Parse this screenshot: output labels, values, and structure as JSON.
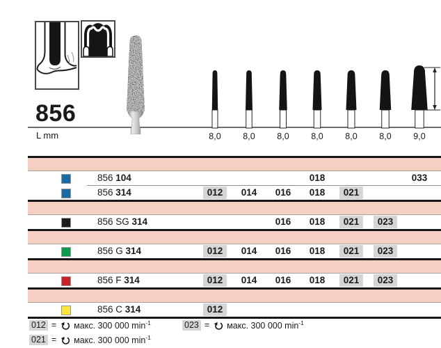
{
  "header": {
    "product_number": "856",
    "length_label": "L mm"
  },
  "shank_lengths": {
    "values": [
      "8,0",
      "8,0",
      "8,0",
      "8,0",
      "8,0",
      "8,0",
      "9,0"
    ]
  },
  "table": {
    "column_sizes": [
      "012",
      "014",
      "016",
      "018",
      "021",
      "023",
      "033"
    ],
    "groups": [
      {
        "rows": [
          {
            "label_plain": "856",
            "label_bold": "104",
            "square_color": "#196ba3",
            "cells": [
              {
                "size": "018",
                "col": 3,
                "highlight": false
              },
              {
                "size": "033",
                "col": 6,
                "highlight": false
              }
            ]
          },
          {
            "label_plain": "856",
            "label_bold": "314",
            "square_color": "#196ba3",
            "cells": [
              {
                "size": "012",
                "col": 0,
                "highlight": true
              },
              {
                "size": "014",
                "col": 1,
                "highlight": false
              },
              {
                "size": "016",
                "col": 2,
                "highlight": false
              },
              {
                "size": "018",
                "col": 3,
                "highlight": false
              },
              {
                "size": "021",
                "col": 4,
                "highlight": true
              }
            ]
          }
        ]
      },
      {
        "rows": [
          {
            "label_plain": "856 SG",
            "label_bold": "314",
            "square_color": "#1c1c1c",
            "cells": [
              {
                "size": "016",
                "col": 2,
                "highlight": false
              },
              {
                "size": "018",
                "col": 3,
                "highlight": false
              },
              {
                "size": "021",
                "col": 4,
                "highlight": true
              },
              {
                "size": "023",
                "col": 5,
                "highlight": true
              }
            ]
          }
        ]
      },
      {
        "rows": [
          {
            "label_plain": "856 G",
            "label_bold": "314",
            "square_color": "#0d9b4d",
            "cells": [
              {
                "size": "012",
                "col": 0,
                "highlight": true
              },
              {
                "size": "014",
                "col": 1,
                "highlight": false
              },
              {
                "size": "016",
                "col": 2,
                "highlight": false
              },
              {
                "size": "018",
                "col": 3,
                "highlight": false
              },
              {
                "size": "021",
                "col": 4,
                "highlight": true
              },
              {
                "size": "023",
                "col": 5,
                "highlight": true
              }
            ]
          }
        ]
      },
      {
        "rows": [
          {
            "label_plain": "856 F",
            "label_bold": "314",
            "square_color": "#cc2128",
            "cells": [
              {
                "size": "012",
                "col": 0,
                "highlight": true
              },
              {
                "size": "014",
                "col": 1,
                "highlight": false
              },
              {
                "size": "016",
                "col": 2,
                "highlight": false
              },
              {
                "size": "018",
                "col": 3,
                "highlight": false
              },
              {
                "size": "021",
                "col": 4,
                "highlight": true
              },
              {
                "size": "023",
                "col": 5,
                "highlight": true
              }
            ]
          }
        ]
      },
      {
        "rows": [
          {
            "label_plain": "856 C",
            "label_bold": "314",
            "square_color": "#fde53a",
            "cells": [
              {
                "size": "012",
                "col": 0,
                "highlight": true
              }
            ]
          }
        ]
      }
    ]
  },
  "legend": {
    "entries": [
      {
        "code": "012",
        "equals": "=",
        "text": "макс. 300 000 min",
        "superscript": "-1"
      },
      {
        "code": "023",
        "equals": "=",
        "text": "макс. 300 000 min",
        "superscript": "-1"
      },
      {
        "code": "021",
        "equals": "=",
        "text": "макс. 300 000 min",
        "superscript": "-1"
      }
    ]
  },
  "colors": {
    "band_pink": "#f5cfc2",
    "highlight_gray": "#d5d5d5"
  }
}
